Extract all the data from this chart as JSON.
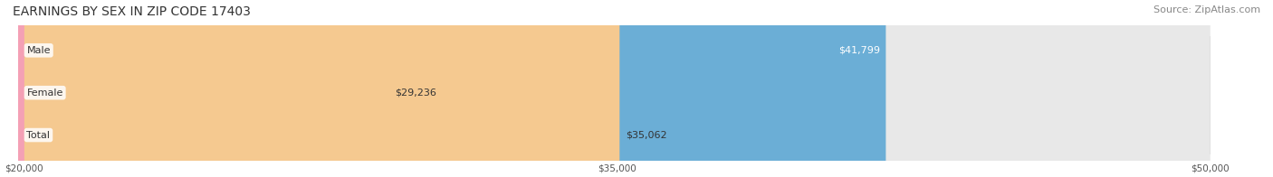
{
  "title": "EARNINGS BY SEX IN ZIP CODE 17403",
  "source": "Source: ZipAtlas.com",
  "categories": [
    "Male",
    "Female",
    "Total"
  ],
  "values": [
    41799,
    29236,
    35062
  ],
  "bar_colors": [
    "#6baed6",
    "#f4a0b5",
    "#f5c990"
  ],
  "track_color": "#e8e8e8",
  "label_color": [
    "#ffffff",
    "#555555",
    "#555555"
  ],
  "x_min": 20000,
  "x_max": 50000,
  "x_ticks": [
    20000,
    35000,
    50000
  ],
  "x_tick_labels": [
    "$20,000",
    "$35,000",
    "$50,000"
  ],
  "title_fontsize": 10,
  "source_fontsize": 8,
  "bar_label_fontsize": 8,
  "category_fontsize": 8,
  "background_color": "#ffffff"
}
